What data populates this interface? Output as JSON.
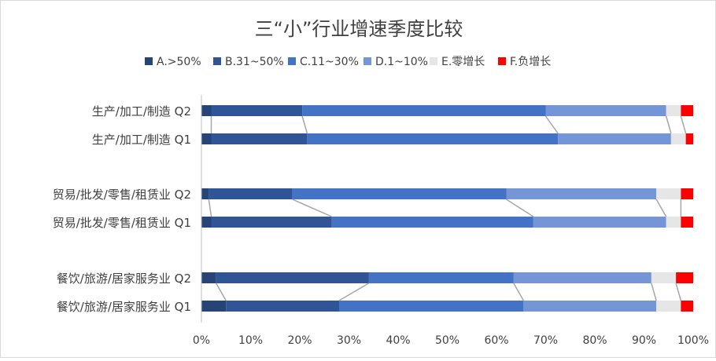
{
  "chart_data": {
    "type": "bar",
    "orientation": "horizontal",
    "stacked": "percent",
    "title": "三“小”行业增速季度比较",
    "legend_position": "top",
    "categories": [
      "生产/加工/制造  Q2",
      "生产/加工/制造  Q1",
      "贸易/批发/零售/租赁业  Q2",
      "贸易/批发/零售/租赁业  Q1",
      "餐饮/旅游/居家服务业  Q2",
      "餐饮/旅游/居家服务业  Q1"
    ],
    "series": [
      {
        "name": "A.>50%",
        "color": "#264478",
        "values": [
          2.0,
          2.0,
          1.5,
          2.0,
          3.0,
          5.0
        ]
      },
      {
        "name": "B.31~50%",
        "color": "#2f5597",
        "values": [
          18.5,
          19.5,
          17.0,
          24.5,
          31.0,
          23.0
        ]
      },
      {
        "name": "C.11~30%",
        "color": "#4472c4",
        "values": [
          49.5,
          51.0,
          43.5,
          41.0,
          29.5,
          37.5
        ]
      },
      {
        "name": "D.1~10%",
        "color": "#7496d6",
        "values": [
          24.5,
          23.0,
          30.5,
          27.0,
          28.0,
          27.0
        ]
      },
      {
        "name": "E.零增长",
        "color": "#e6e6e6",
        "values": [
          3.0,
          3.0,
          5.0,
          3.0,
          5.0,
          5.0
        ]
      },
      {
        "name": "F.负增长",
        "color": "#ff0000",
        "values": [
          2.5,
          1.5,
          2.5,
          2.5,
          3.5,
          2.5
        ]
      }
    ],
    "xlim": [
      0,
      100
    ],
    "xticks": [
      "0%",
      "10%",
      "20%",
      "30%",
      "40%",
      "50%",
      "60%",
      "70%",
      "80%",
      "90%",
      "100%"
    ],
    "series_lines": true,
    "grid": false
  }
}
